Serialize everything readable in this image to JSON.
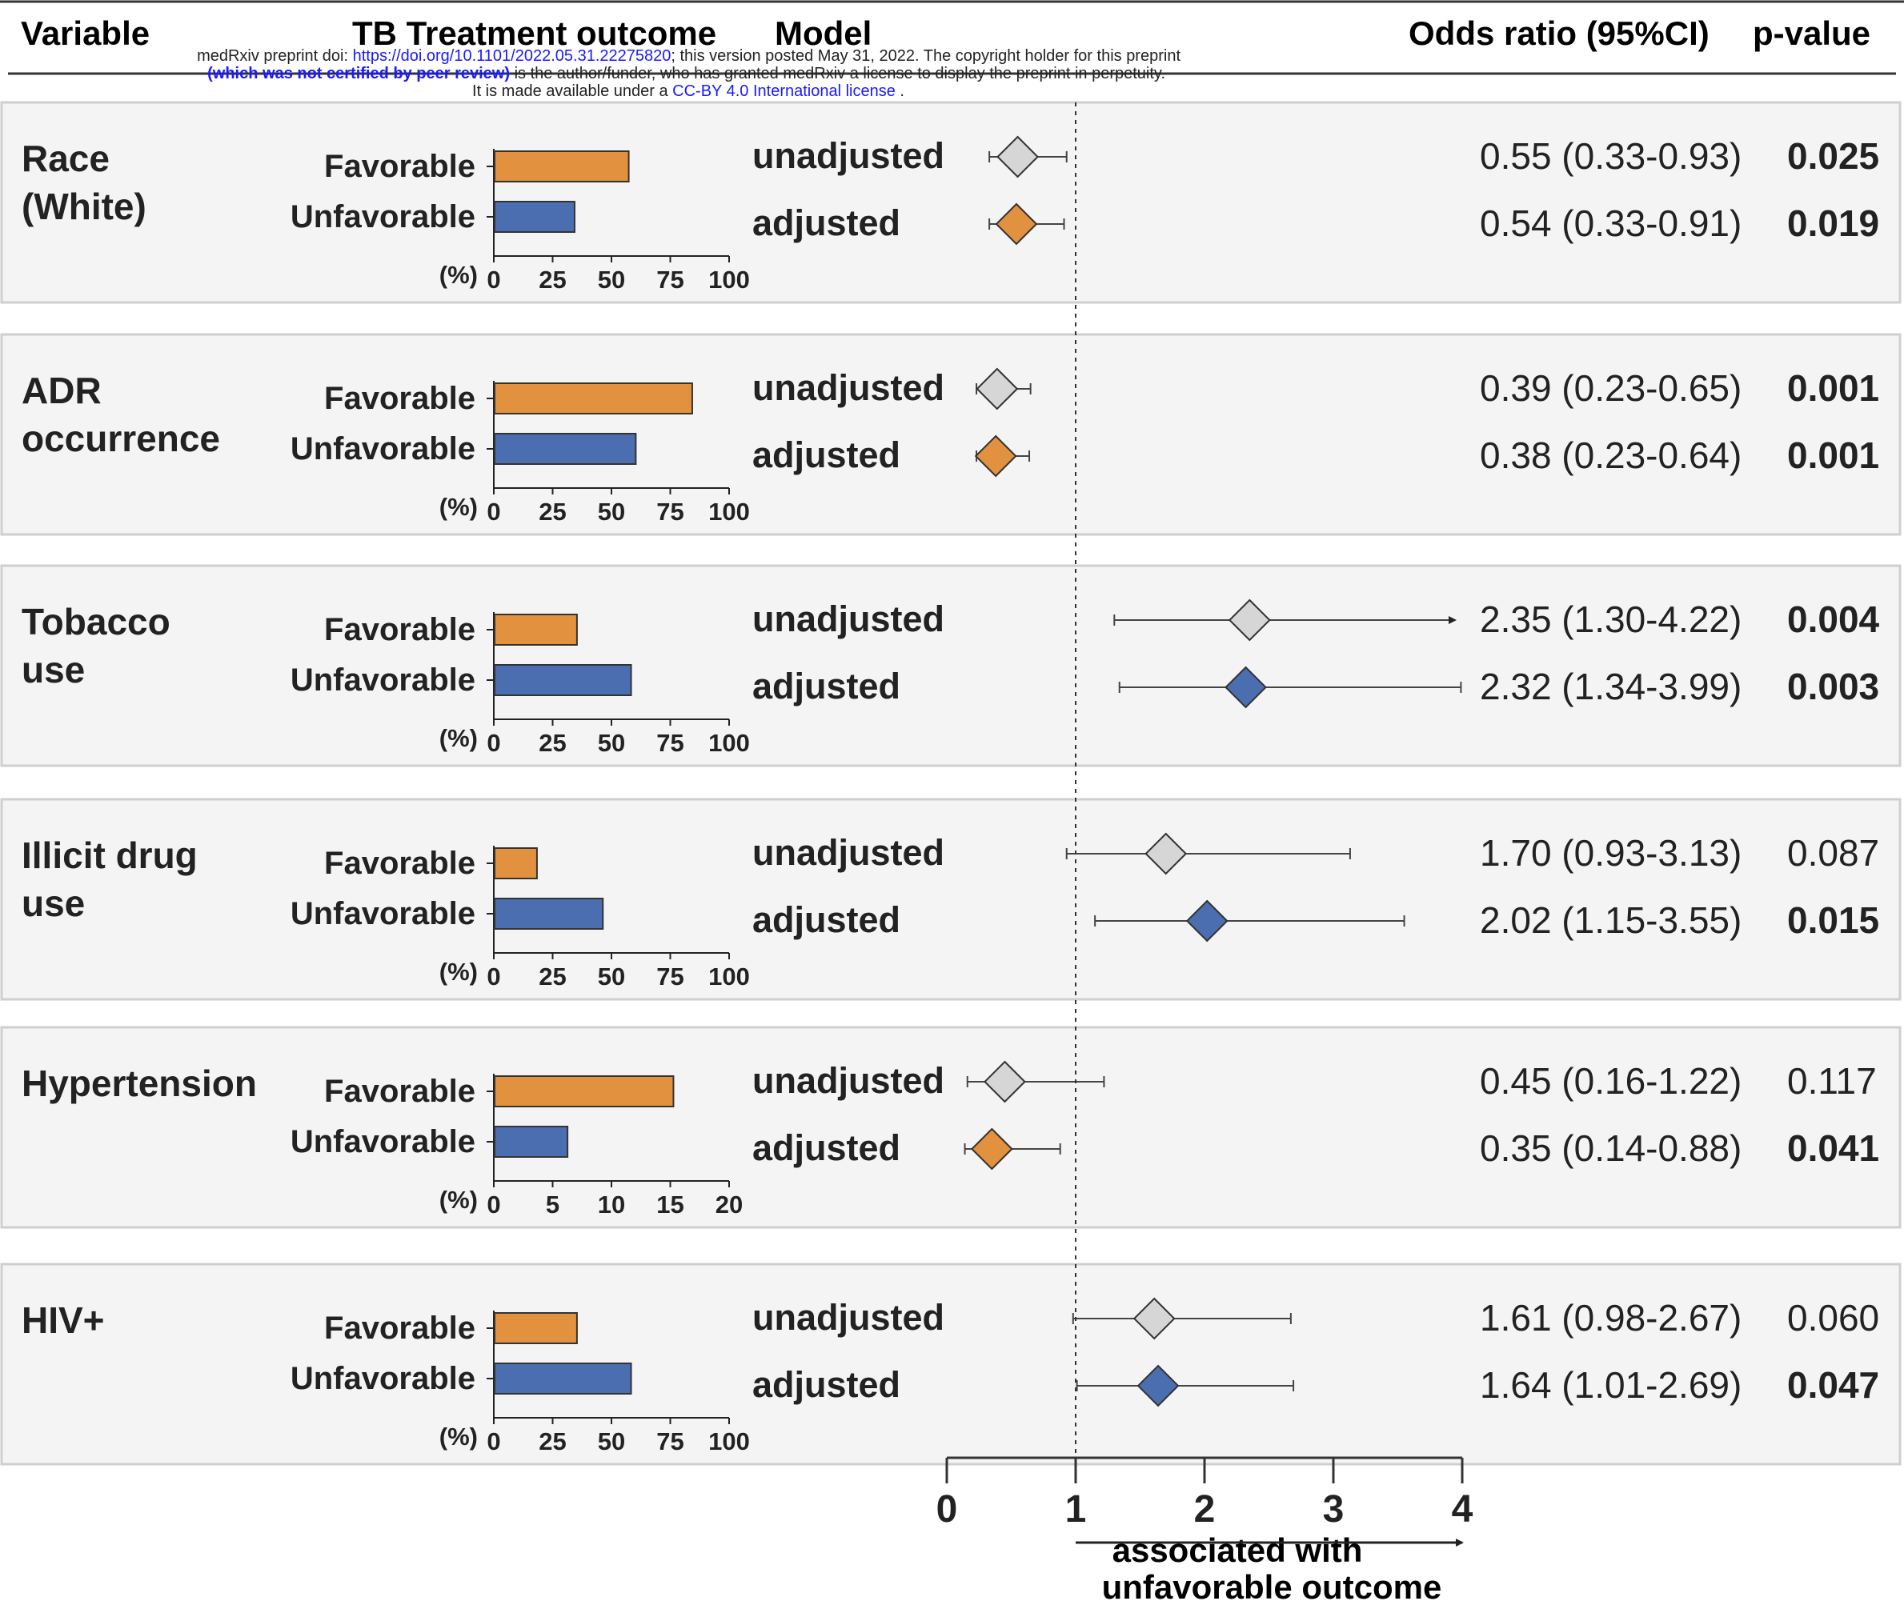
{
  "header": {
    "variable": "Variable",
    "outcome": "TB Treatment outcome",
    "model": "Model",
    "or": "Odds ratio (95%CI)",
    "p": "p-value"
  },
  "watermark": {
    "line1_a": "medRxiv preprint doi: ",
    "line1_link": "https://doi.org/10.1101/2022.05.31.22275820",
    "line1_b": "; this version posted May 31, 2022. The copyright holder for this preprint",
    "line2_a": "(which was not certified by peer review)",
    "line2_b": " is the author/funder, who has granted medRxiv a license to display the preprint in perpetuity.",
    "line3_a": "It is made available under a ",
    "line3_link": "CC-BY 4.0 International license",
    "line3_b": " ."
  },
  "colors": {
    "favorable": "#E2913F",
    "unfavorable": "#4A6EAF",
    "unadjusted_marker": "#D6D6D6",
    "panel_bg": "#F4F4F4",
    "panel_border": "#CFCFCF"
  },
  "chart_data": {
    "type": "bar + forest plot",
    "bar_pct_label": "(%)",
    "model_labels": [
      "unadjusted",
      "adjusted"
    ],
    "forest_axis": {
      "ticks": [
        "0",
        "1",
        "2",
        "3",
        "4"
      ],
      "range": [
        0,
        4
      ],
      "reference_line": 1,
      "arrow_label_1": "associated with",
      "arrow_label_2": "unfavorable outcome"
    },
    "panels": [
      {
        "variable": [
          "Race",
          "(White)"
        ],
        "bar_categories": [
          "Favorable",
          "Unfavorable"
        ],
        "bar_values": [
          57,
          34
        ],
        "bar_axis_max": 100,
        "bar_ticks": [
          "0",
          "25",
          "50",
          "75",
          "100"
        ],
        "rows": [
          {
            "model": "unadjusted",
            "or": 0.55,
            "lo": 0.33,
            "hi": 0.93,
            "text": "0.55 (0.33-0.93)",
            "p": "0.025",
            "p_bold": true,
            "marker": "gray"
          },
          {
            "model": "adjusted",
            "or": 0.54,
            "lo": 0.33,
            "hi": 0.91,
            "text": "0.54 (0.33-0.91)",
            "p": "0.019",
            "p_bold": true,
            "marker": "orange"
          }
        ]
      },
      {
        "variable": [
          "ADR",
          "occurrence"
        ],
        "bar_categories": [
          "Favorable",
          "Unfavorable"
        ],
        "bar_values": [
          84,
          60
        ],
        "bar_axis_max": 100,
        "bar_ticks": [
          "0",
          "25",
          "50",
          "75",
          "100"
        ],
        "rows": [
          {
            "model": "unadjusted",
            "or": 0.39,
            "lo": 0.23,
            "hi": 0.65,
            "text": "0.39 (0.23-0.65)",
            "p": "0.001",
            "p_bold": true,
            "marker": "gray"
          },
          {
            "model": "adjusted",
            "or": 0.38,
            "lo": 0.23,
            "hi": 0.64,
            "text": "0.38 (0.23-0.64)",
            "p": "0.001",
            "p_bold": true,
            "marker": "orange"
          }
        ]
      },
      {
        "variable": [
          "Tobacco",
          "use"
        ],
        "bar_categories": [
          "Favorable",
          "Unfavorable"
        ],
        "bar_values": [
          35,
          58
        ],
        "bar_axis_max": 100,
        "bar_ticks": [
          "0",
          "25",
          "50",
          "75",
          "100"
        ],
        "rows": [
          {
            "model": "unadjusted",
            "or": 2.35,
            "lo": 1.3,
            "hi": 4.22,
            "text": "2.35 (1.30-4.22)",
            "p": "0.004",
            "p_bold": true,
            "marker": "gray",
            "arrow": true
          },
          {
            "model": "adjusted",
            "or": 2.32,
            "lo": 1.34,
            "hi": 3.99,
            "text": "2.32  (1.34-3.99)",
            "p": "0.003",
            "p_bold": true,
            "marker": "blue"
          }
        ]
      },
      {
        "variable": [
          "Illicit drug",
          "use"
        ],
        "bar_categories": [
          "Favorable",
          "Unfavorable"
        ],
        "bar_values": [
          18,
          46
        ],
        "bar_axis_max": 100,
        "bar_ticks": [
          "0",
          "25",
          "50",
          "75",
          "100"
        ],
        "rows": [
          {
            "model": "unadjusted",
            "or": 1.7,
            "lo": 0.93,
            "hi": 3.13,
            "text": "1.70 (0.93-3.13)",
            "p": "0.087",
            "p_bold": false,
            "marker": "gray"
          },
          {
            "model": "adjusted",
            "or": 2.02,
            "lo": 1.15,
            "hi": 3.55,
            "text": "2.02 (1.15-3.55)",
            "p": "0.015",
            "p_bold": true,
            "marker": "blue"
          }
        ]
      },
      {
        "variable": [
          "Hypertension"
        ],
        "bar_categories": [
          "Favorable",
          "Unfavorable"
        ],
        "bar_values": [
          15.2,
          6.2
        ],
        "bar_axis_max": 20,
        "bar_ticks": [
          "0",
          "5",
          "10",
          "15",
          "20"
        ],
        "rows": [
          {
            "model": "unadjusted",
            "or": 0.45,
            "lo": 0.16,
            "hi": 1.22,
            "text": "0.45 (0.16-1.22)",
            "p": "0.117",
            "p_bold": false,
            "marker": "gray"
          },
          {
            "model": "adjusted",
            "or": 0.35,
            "lo": 0.14,
            "hi": 0.88,
            "text": "0.35 (0.14-0.88)",
            "p": "0.041",
            "p_bold": true,
            "marker": "orange"
          }
        ]
      },
      {
        "variable": [
          "HIV+"
        ],
        "bar_categories": [
          "Favorable",
          "Unfavorable"
        ],
        "bar_values": [
          35,
          58
        ],
        "bar_axis_max": 100,
        "bar_ticks": [
          "0",
          "25",
          "50",
          "75",
          "100"
        ],
        "rows": [
          {
            "model": "unadjusted",
            "or": 1.61,
            "lo": 0.98,
            "hi": 2.67,
            "text": "1.61 (0.98-2.67)",
            "p": "0.060",
            "p_bold": false,
            "marker": "gray"
          },
          {
            "model": "adjusted",
            "or": 1.64,
            "lo": 1.01,
            "hi": 2.69,
            "text": "1.64 (1.01-2.69)",
            "p": "0.047",
            "p_bold": true,
            "marker": "blue"
          }
        ]
      }
    ]
  }
}
